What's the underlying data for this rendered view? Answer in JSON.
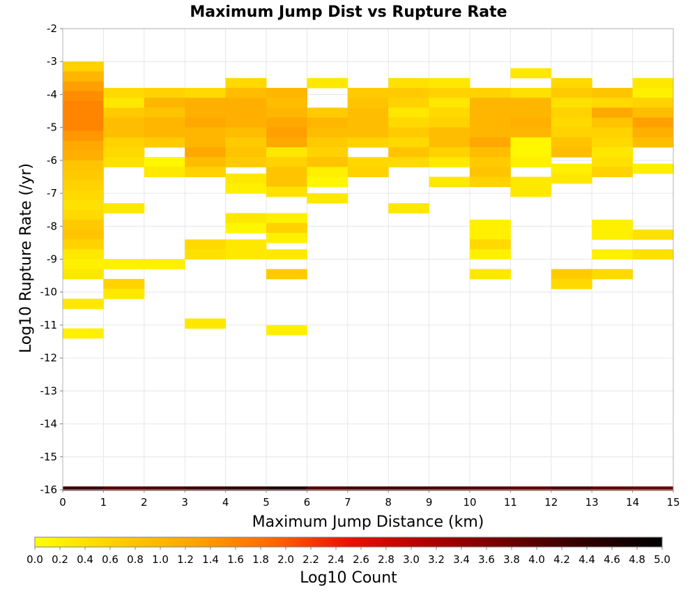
{
  "colors": {
    "gradient": [
      "#ffff00",
      "#ffd000",
      "#ffa500",
      "#ff6a00",
      "#ee1000",
      "#b00000",
      "#700000",
      "#300000",
      "#000000"
    ],
    "grid": "#e6e6e6",
    "plot_border": "#b0b0b0"
  },
  "chart_data": {
    "type": "heatmap",
    "title": "Maximum Jump Dist vs Rupture Rate",
    "xlabel": "Maximum Jump Distance (km)",
    "ylabel": "Log10 Rupture Rate (/yr)",
    "colorbar_label": "Log10 Count",
    "xlim": [
      0,
      15
    ],
    "ylim": [
      -16,
      -2
    ],
    "x_ticks": [
      0,
      1,
      2,
      3,
      4,
      5,
      6,
      7,
      8,
      9,
      10,
      11,
      12,
      13,
      14,
      15
    ],
    "y_ticks": [
      -2,
      -3,
      -4,
      -5,
      -6,
      -7,
      -8,
      -9,
      -10,
      -11,
      -12,
      -13,
      -14,
      -15,
      -16
    ],
    "colorbar_ticks": [
      "0.0",
      "0.2",
      "0.4",
      "0.6",
      "0.8",
      "1.0",
      "1.2",
      "1.4",
      "1.6",
      "1.8",
      "2.0",
      "2.2",
      "2.4",
      "2.6",
      "2.8",
      "3.0",
      "3.2",
      "3.4",
      "3.6",
      "3.8",
      "4.0",
      "4.2",
      "4.4",
      "4.6",
      "4.8",
      "5.0"
    ],
    "colorbar_range": [
      0,
      5
    ],
    "x_bin_width": 1,
    "y_bin_height": 0.3,
    "grid": true,
    "columns": [
      {
        "x": 0,
        "cells": [
          [
            -3.15,
            0.6
          ],
          [
            -3.45,
            1.0
          ],
          [
            -3.75,
            1.3
          ],
          [
            -4.05,
            1.5
          ],
          [
            -4.35,
            1.6
          ],
          [
            -4.65,
            1.6
          ],
          [
            -4.95,
            1.6
          ],
          [
            -5.25,
            1.4
          ],
          [
            -5.55,
            1.2
          ],
          [
            -5.85,
            1.1
          ],
          [
            -6.15,
            0.8
          ],
          [
            -6.45,
            0.7
          ],
          [
            -6.75,
            0.6
          ],
          [
            -7.05,
            0.5
          ],
          [
            -7.35,
            0.4
          ],
          [
            -7.65,
            0.5
          ],
          [
            -7.95,
            0.7
          ],
          [
            -8.25,
            0.8
          ],
          [
            -8.55,
            0.6
          ],
          [
            -8.85,
            0.3
          ],
          [
            -9.15,
            0.2
          ],
          [
            -9.45,
            0.3
          ],
          [
            -10.35,
            0.3
          ],
          [
            -11.25,
            0.2
          ]
        ]
      },
      {
        "x": 1,
        "cells": [
          [
            -3.95,
            0.5
          ],
          [
            -4.25,
            0.3
          ],
          [
            -4.55,
            0.7
          ],
          [
            -4.85,
            0.9
          ],
          [
            -5.15,
            0.9
          ],
          [
            -5.45,
            0.6
          ],
          [
            -5.75,
            0.5
          ],
          [
            -6.05,
            0.4
          ],
          [
            -7.45,
            0.3
          ],
          [
            -9.15,
            0.2
          ],
          [
            -9.75,
            0.6
          ],
          [
            -10.05,
            0.3
          ]
        ]
      },
      {
        "x": 2,
        "cells": [
          [
            -3.95,
            0.6
          ],
          [
            -4.25,
            1.0
          ],
          [
            -4.55,
            0.8
          ],
          [
            -4.85,
            1.0
          ],
          [
            -5.15,
            1.0
          ],
          [
            -5.45,
            0.7
          ],
          [
            -6.05,
            0.1
          ],
          [
            -6.35,
            0.3
          ],
          [
            -9.15,
            0.2
          ]
        ]
      },
      {
        "x": 3,
        "cells": [
          [
            -3.95,
            0.5
          ],
          [
            -4.25,
            1.1
          ],
          [
            -4.55,
            1.1
          ],
          [
            -4.85,
            1.2
          ],
          [
            -5.15,
            1.0
          ],
          [
            -5.45,
            1.0
          ],
          [
            -5.75,
            1.2
          ],
          [
            -6.05,
            0.9
          ],
          [
            -6.35,
            0.6
          ],
          [
            -8.55,
            0.5
          ],
          [
            -8.85,
            0.4
          ],
          [
            -10.95,
            0.3
          ]
        ]
      },
      {
        "x": 4,
        "cells": [
          [
            -3.65,
            0.5
          ],
          [
            -3.95,
            0.9
          ],
          [
            -4.25,
            1.1
          ],
          [
            -4.55,
            1.1
          ],
          [
            -4.85,
            1.1
          ],
          [
            -5.15,
            0.9
          ],
          [
            -5.45,
            0.7
          ],
          [
            -5.75,
            0.8
          ],
          [
            -6.05,
            0.7
          ],
          [
            -6.55,
            0.3
          ],
          [
            -6.85,
            0.2
          ],
          [
            -7.75,
            0.3
          ],
          [
            -8.05,
            0.1
          ],
          [
            -8.55,
            0.3
          ],
          [
            -8.85,
            0.3
          ]
        ]
      },
      {
        "x": 5,
        "cells": [
          [
            -3.95,
            1.0
          ],
          [
            -4.25,
            0.9
          ],
          [
            -4.55,
            1.0
          ],
          [
            -4.85,
            1.2
          ],
          [
            -5.15,
            1.3
          ],
          [
            -5.45,
            1.2
          ],
          [
            -5.75,
            0.3
          ],
          [
            -6.05,
            0.6
          ],
          [
            -6.35,
            0.8
          ],
          [
            -6.65,
            0.8
          ],
          [
            -6.95,
            0.4
          ],
          [
            -7.75,
            0.2
          ],
          [
            -8.05,
            0.6
          ],
          [
            -8.35,
            0.2
          ],
          [
            -8.85,
            0.3
          ],
          [
            -9.45,
            0.7
          ],
          [
            -11.15,
            0.2
          ]
        ]
      },
      {
        "x": 6,
        "cells": [
          [
            -3.65,
            0.3
          ],
          [
            -4.55,
            0.7
          ],
          [
            -4.85,
            1.0
          ],
          [
            -5.15,
            0.9
          ],
          [
            -5.45,
            0.7
          ],
          [
            -5.75,
            0.6
          ],
          [
            -6.05,
            0.8
          ],
          [
            -6.35,
            0.2
          ],
          [
            -6.65,
            0.1
          ],
          [
            -7.15,
            0.3
          ]
        ]
      },
      {
        "x": 7,
        "cells": [
          [
            -3.95,
            0.7
          ],
          [
            -4.25,
            0.8
          ],
          [
            -4.55,
            0.9
          ],
          [
            -4.85,
            0.9
          ],
          [
            -5.15,
            0.9
          ],
          [
            -5.45,
            0.6
          ],
          [
            -6.05,
            0.5
          ],
          [
            -6.35,
            0.6
          ]
        ]
      },
      {
        "x": 8,
        "cells": [
          [
            -3.65,
            0.4
          ],
          [
            -3.95,
            0.7
          ],
          [
            -4.25,
            0.6
          ],
          [
            -4.55,
            0.3
          ],
          [
            -4.85,
            0.5
          ],
          [
            -5.15,
            0.7
          ],
          [
            -5.45,
            0.5
          ],
          [
            -5.75,
            0.8
          ],
          [
            -6.05,
            0.5
          ],
          [
            -7.45,
            0.3
          ]
        ]
      },
      {
        "x": 9,
        "cells": [
          [
            -3.65,
            0.3
          ],
          [
            -3.95,
            0.6
          ],
          [
            -4.25,
            0.3
          ],
          [
            -4.55,
            0.5
          ],
          [
            -4.85,
            0.6
          ],
          [
            -5.15,
            0.9
          ],
          [
            -5.45,
            0.9
          ],
          [
            -5.75,
            0.6
          ],
          [
            -6.05,
            0.3
          ],
          [
            -6.65,
            0.3
          ]
        ]
      },
      {
        "x": 10,
        "cells": [
          [
            -3.95,
            0.6
          ],
          [
            -4.25,
            1.0
          ],
          [
            -4.55,
            1.0
          ],
          [
            -4.85,
            1.0
          ],
          [
            -5.15,
            1.0
          ],
          [
            -5.45,
            1.2
          ],
          [
            -5.75,
            0.9
          ],
          [
            -6.05,
            0.7
          ],
          [
            -6.35,
            0.8
          ],
          [
            -6.65,
            0.6
          ],
          [
            -7.95,
            0.2
          ],
          [
            -8.25,
            0.2
          ],
          [
            -8.55,
            0.5
          ],
          [
            -8.85,
            0.2
          ],
          [
            -9.45,
            0.3
          ]
        ]
      },
      {
        "x": 11,
        "cells": [
          [
            -3.35,
            0.3
          ],
          [
            -3.95,
            0.4
          ],
          [
            -4.25,
            1.0
          ],
          [
            -4.55,
            1.0
          ],
          [
            -4.85,
            1.1
          ],
          [
            -5.15,
            1.0
          ],
          [
            -5.45,
            0.1
          ],
          [
            -5.75,
            0.1
          ],
          [
            -6.05,
            0.2
          ],
          [
            -6.65,
            0.3
          ],
          [
            -6.95,
            0.3
          ]
        ]
      },
      {
        "x": 12,
        "cells": [
          [
            -3.65,
            0.5
          ],
          [
            -3.95,
            0.7
          ],
          [
            -4.25,
            0.4
          ],
          [
            -4.55,
            0.6
          ],
          [
            -4.85,
            0.5
          ],
          [
            -5.15,
            0.6
          ],
          [
            -5.45,
            0.8
          ],
          [
            -5.75,
            0.9
          ],
          [
            -6.25,
            0.2
          ],
          [
            -6.55,
            0.3
          ],
          [
            -9.45,
            0.7
          ],
          [
            -9.75,
            0.5
          ]
        ]
      },
      {
        "x": 13,
        "cells": [
          [
            -3.95,
            0.8
          ],
          [
            -4.25,
            0.5
          ],
          [
            -4.55,
            1.2
          ],
          [
            -4.85,
            0.8
          ],
          [
            -5.15,
            0.6
          ],
          [
            -5.45,
            0.5
          ],
          [
            -5.75,
            0.3
          ],
          [
            -6.05,
            0.4
          ],
          [
            -6.35,
            0.6
          ],
          [
            -7.95,
            0.2
          ],
          [
            -8.25,
            0.2
          ],
          [
            -8.85,
            0.2
          ],
          [
            -9.45,
            0.5
          ]
        ]
      },
      {
        "x": 14,
        "cells": [
          [
            -3.65,
            0.3
          ],
          [
            -3.95,
            0.2
          ],
          [
            -4.25,
            0.6
          ],
          [
            -4.55,
            0.9
          ],
          [
            -4.85,
            1.3
          ],
          [
            -5.15,
            1.1
          ],
          [
            -5.45,
            0.9
          ],
          [
            -6.25,
            0.2
          ],
          [
            -8.25,
            0.4
          ],
          [
            -8.85,
            0.4
          ]
        ]
      }
    ],
    "bottom_row": {
      "y": -15.95,
      "values": [
        4.3,
        4.0,
        4.1,
        4.3,
        4.4,
        4.6,
        4.0,
        4.2,
        4.2,
        4.1,
        4.0,
        3.9,
        4.1,
        3.9,
        3.8
      ]
    }
  }
}
